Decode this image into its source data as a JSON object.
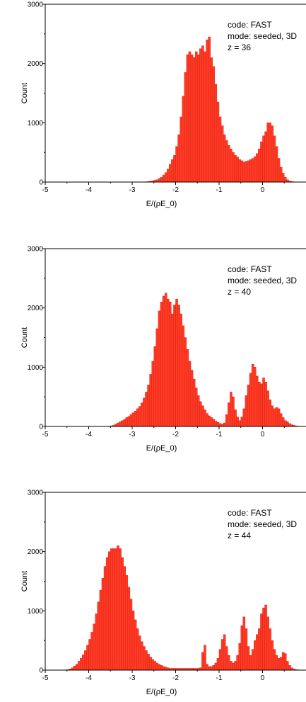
{
  "style": {
    "bar_fill": "#ff3b26",
    "bar_edge": "#d11a0a",
    "axis_color": "#000000"
  },
  "chart_data": [
    {
      "type": "bar",
      "xlabel": "E/(ρE_0)",
      "ylabel": "Count",
      "xlim": [
        -5,
        1
      ],
      "ylim": [
        0,
        3000
      ],
      "x_ticks": [
        "-5",
        "-4",
        "-3",
        "-2",
        "-1",
        "0"
      ],
      "y_ticks": [
        "0",
        "1000",
        "2000",
        "3000"
      ],
      "annotations": [
        "code: FAST",
        "mode: seeded, 3D",
        "z = 36"
      ],
      "series": [
        {
          "bin_width": 0.05,
          "x": [
            -2.7,
            -2.65,
            -2.6,
            -2.55,
            -2.5,
            -2.45,
            -2.4,
            -2.35,
            -2.3,
            -2.25,
            -2.2,
            -2.15,
            -2.1,
            -2.05,
            -2.0,
            -1.95,
            -1.9,
            -1.85,
            -1.8,
            -1.75,
            -1.7,
            -1.65,
            -1.6,
            -1.55,
            -1.5,
            -1.45,
            -1.4,
            -1.35,
            -1.3,
            -1.25,
            -1.2,
            -1.15,
            -1.1,
            -1.05,
            -1.0,
            -0.95,
            -0.9,
            -0.85,
            -0.8,
            -0.75,
            -0.7,
            -0.65,
            -0.6,
            -0.55,
            -0.5,
            -0.45,
            -0.4,
            -0.35,
            -0.3,
            -0.25,
            -0.2,
            -0.15,
            -0.1,
            -0.05,
            0.0,
            0.05,
            0.1,
            0.15,
            0.2,
            0.25,
            0.3,
            0.35,
            0.4,
            0.45,
            0.5,
            0.55,
            0.6,
            0.65,
            0.7,
            0.75,
            0.8,
            0.85
          ],
          "values": [
            5,
            10,
            15,
            20,
            30,
            40,
            60,
            80,
            120,
            160,
            220,
            300,
            380,
            450,
            600,
            800,
            1100,
            1450,
            1850,
            2150,
            2200,
            2150,
            2100,
            2200,
            2150,
            2250,
            2300,
            2200,
            2400,
            2450,
            2100,
            1950,
            1650,
            1350,
            1100,
            950,
            800,
            700,
            620,
            560,
            500,
            450,
            420,
            380,
            360,
            340,
            350,
            360,
            380,
            400,
            430,
            480,
            560,
            680,
            780,
            850,
            1000,
            1000,
            950,
            780,
            600,
            400,
            250,
            150,
            80,
            40,
            20,
            10,
            5,
            2,
            1,
            0
          ]
        }
      ]
    },
    {
      "type": "bar",
      "xlabel": "E/(ρE_0)",
      "ylabel": "Count",
      "xlim": [
        -5,
        1
      ],
      "ylim": [
        0,
        3000
      ],
      "x_ticks": [
        "-5",
        "-4",
        "-3",
        "-2",
        "-1",
        "0"
      ],
      "y_ticks": [
        "0",
        "1000",
        "2000",
        "3000"
      ],
      "annotations": [
        "code: FAST",
        "mode: seeded, 3D",
        "z = 40"
      ],
      "series": [
        {
          "bin_width": 0.05,
          "x": [
            -3.55,
            -3.5,
            -3.45,
            -3.4,
            -3.35,
            -3.3,
            -3.25,
            -3.2,
            -3.15,
            -3.1,
            -3.05,
            -3.0,
            -2.95,
            -2.9,
            -2.85,
            -2.8,
            -2.75,
            -2.7,
            -2.65,
            -2.6,
            -2.55,
            -2.5,
            -2.45,
            -2.4,
            -2.35,
            -2.3,
            -2.25,
            -2.2,
            -2.15,
            -2.1,
            -2.05,
            -2.0,
            -1.95,
            -1.9,
            -1.85,
            -1.8,
            -1.75,
            -1.7,
            -1.65,
            -1.6,
            -1.55,
            -1.5,
            -1.45,
            -1.4,
            -1.35,
            -1.3,
            -1.25,
            -1.2,
            -1.15,
            -1.1,
            -1.05,
            -1.0,
            -0.95,
            -0.9,
            -0.85,
            -0.8,
            -0.75,
            -0.7,
            -0.65,
            -0.6,
            -0.55,
            -0.5,
            -0.45,
            -0.4,
            -0.35,
            -0.3,
            -0.25,
            -0.2,
            -0.15,
            -0.1,
            -0.05,
            0.0,
            0.05,
            0.1,
            0.15,
            0.2,
            0.25,
            0.3,
            0.35,
            0.4,
            0.45,
            0.5,
            0.55,
            0.6,
            0.65,
            0.7,
            0.75,
            0.8,
            0.85
          ],
          "values": [
            5,
            10,
            20,
            40,
            60,
            80,
            100,
            120,
            150,
            170,
            200,
            230,
            260,
            300,
            340,
            400,
            480,
            580,
            700,
            880,
            1100,
            1350,
            1650,
            1950,
            2100,
            2200,
            2250,
            2150,
            2100,
            1900,
            2050,
            2150,
            2050,
            1900,
            1700,
            1500,
            1300,
            1100,
            950,
            800,
            650,
            520,
            420,
            350,
            280,
            220,
            180,
            150,
            120,
            90,
            70,
            50,
            40,
            60,
            200,
            400,
            580,
            500,
            280,
            160,
            100,
            160,
            300,
            520,
            700,
            900,
            1050,
            1000,
            850,
            750,
            720,
            820,
            750,
            600,
            450,
            350,
            300,
            320,
            300,
            220,
            150,
            100,
            80,
            50,
            30,
            20,
            10,
            5,
            2
          ]
        }
      ]
    },
    {
      "type": "bar",
      "xlabel": "E/(ρE_0)",
      "ylabel": "Count",
      "xlim": [
        -5,
        1
      ],
      "ylim": [
        0,
        3000
      ],
      "x_ticks": [
        "-5",
        "-4",
        "-3",
        "-2",
        "-1",
        "0"
      ],
      "y_ticks": [
        "0",
        "1000",
        "2000",
        "3000"
      ],
      "annotations": [
        "code: FAST",
        "mode: seeded, 3D",
        "z = 44"
      ],
      "series": [
        {
          "bin_width": 0.05,
          "x": [
            -4.55,
            -4.5,
            -4.45,
            -4.4,
            -4.35,
            -4.3,
            -4.25,
            -4.2,
            -4.15,
            -4.1,
            -4.05,
            -4.0,
            -3.95,
            -3.9,
            -3.85,
            -3.8,
            -3.75,
            -3.7,
            -3.65,
            -3.6,
            -3.55,
            -3.5,
            -3.45,
            -3.4,
            -3.35,
            -3.3,
            -3.25,
            -3.2,
            -3.15,
            -3.1,
            -3.05,
            -3.0,
            -2.95,
            -2.9,
            -2.85,
            -2.8,
            -2.75,
            -2.7,
            -2.65,
            -2.6,
            -2.55,
            -2.5,
            -2.45,
            -2.4,
            -2.35,
            -2.3,
            -2.25,
            -2.2,
            -2.15,
            -2.1,
            -2.05,
            -2.0,
            -1.95,
            -1.9,
            -1.85,
            -1.8,
            -1.75,
            -1.7,
            -1.65,
            -1.6,
            -1.55,
            -1.5,
            -1.45,
            -1.4,
            -1.35,
            -1.3,
            -1.25,
            -1.2,
            -1.15,
            -1.1,
            -1.05,
            -1.0,
            -0.95,
            -0.9,
            -0.85,
            -0.8,
            -0.75,
            -0.7,
            -0.65,
            -0.6,
            -0.55,
            -0.5,
            -0.45,
            -0.4,
            -0.35,
            -0.3,
            -0.25,
            -0.2,
            -0.15,
            -0.1,
            -0.05,
            0.0,
            0.05,
            0.1,
            0.15,
            0.2,
            0.25,
            0.3,
            0.35,
            0.4,
            0.45,
            0.5,
            0.55,
            0.6,
            0.65,
            0.7,
            0.75,
            0.8,
            0.85
          ],
          "values": [
            5,
            10,
            20,
            40,
            70,
            100,
            150,
            200,
            260,
            330,
            420,
            520,
            640,
            780,
            950,
            1150,
            1350,
            1550,
            1750,
            1900,
            2000,
            2050,
            2050,
            2050,
            2100,
            2050,
            1900,
            1750,
            1600,
            1400,
            1200,
            1000,
            850,
            700,
            580,
            480,
            400,
            330,
            270,
            220,
            180,
            150,
            120,
            100,
            80,
            60,
            50,
            40,
            30,
            30,
            30,
            30,
            30,
            30,
            30,
            30,
            30,
            30,
            30,
            30,
            30,
            30,
            40,
            300,
            420,
            100,
            60,
            60,
            80,
            120,
            200,
            350,
            520,
            600,
            400,
            250,
            150,
            120,
            150,
            250,
            450,
            750,
            900,
            700,
            400,
            250,
            350,
            500,
            600,
            700,
            950,
            1050,
            1100,
            900,
            700,
            500,
            350,
            250,
            200,
            220,
            300,
            280,
            150,
            80,
            40,
            20,
            10,
            5,
            2
          ]
        }
      ]
    }
  ]
}
